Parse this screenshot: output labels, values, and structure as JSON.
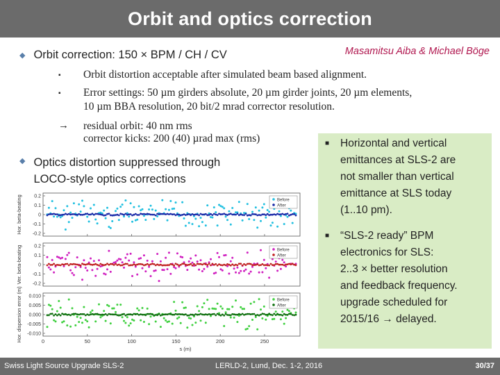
{
  "title": "Orbit and optics correction",
  "authors": "Masamitsu Aiba & Michael Böge",
  "bullet1": "Orbit correction: 150 × BPM / CH / CV",
  "sub1": "Orbit distortion acceptable after simulated beam based alignment.",
  "sub2_line1": "Error settings: 50 µm girders absolute, 20 µm girder joints, 20 µm elements,",
  "sub2_line2": "10 µm BBA resolution, 20 bit/2 mrad corrector resolution.",
  "sub3_line1": "residual orbit:  40 nm rms",
  "sub3_line2": "corrector kicks: 200 (40) µrad max (rms)",
  "bullet2_line1": "Optics distortion suppressed through",
  "bullet2_line2": "LOCO-style optics corrections",
  "panel": {
    "item1": [
      "Horizontal and vertical",
      "emittances at SLS-2 are",
      "not smaller than vertical",
      "emittance at SLS today",
      "(1..10 pm)."
    ],
    "item2": [
      "“SLS-2 ready” BPM",
      "electronics for SLS:",
      "2..3 × better resolution",
      "and feedback frequency.",
      "upgrade scheduled for",
      "2015/16 → delayed."
    ]
  },
  "footer": {
    "left": "Swiss Light Source Upgrade  SLS-2",
    "center": "LERLD-2, Lund, Dec. 1-2, 2016",
    "right": "30/37"
  },
  "chart_data": {
    "type": "scatter",
    "xlabel": "s (m)",
    "xlim": [
      0,
      290
    ],
    "xticks": [
      "0",
      "50",
      "100",
      "150",
      "200",
      "250"
    ],
    "panels": [
      {
        "ylabel": "Hor. beta-beating",
        "yticks": [
          "0.2",
          "0.1",
          "0",
          "-0.1",
          "-0.2"
        ],
        "ylim": [
          -0.25,
          0.25
        ],
        "series": [
          {
            "name": "Before",
            "color": "#22c0e0"
          },
          {
            "name": "After",
            "color": "#1a2aa8"
          }
        ]
      },
      {
        "ylabel": "Ver. beta-beating",
        "yticks": [
          "0.2",
          "0.1",
          "0",
          "-0.1",
          "-0.2"
        ],
        "ylim": [
          -0.25,
          0.25
        ],
        "series": [
          {
            "name": "Before",
            "color": "#d020c0"
          },
          {
            "name": "After",
            "color": "#c02020"
          }
        ]
      },
      {
        "ylabel": "Hor. dispersion error (m)",
        "yticks": [
          "0.010",
          "0.005",
          "0.000",
          "-0.005",
          "-0.010"
        ],
        "ylim": [
          -0.012,
          0.012
        ],
        "series": [
          {
            "name": "Before",
            "color": "#40d040"
          },
          {
            "name": "After",
            "color": "#107010"
          }
        ]
      }
    ]
  },
  "colors": {
    "titlebar": "#6b6b6b",
    "panel": "#d9ecc5",
    "authors": "#b0174f",
    "bullet": "#5a7faa"
  }
}
